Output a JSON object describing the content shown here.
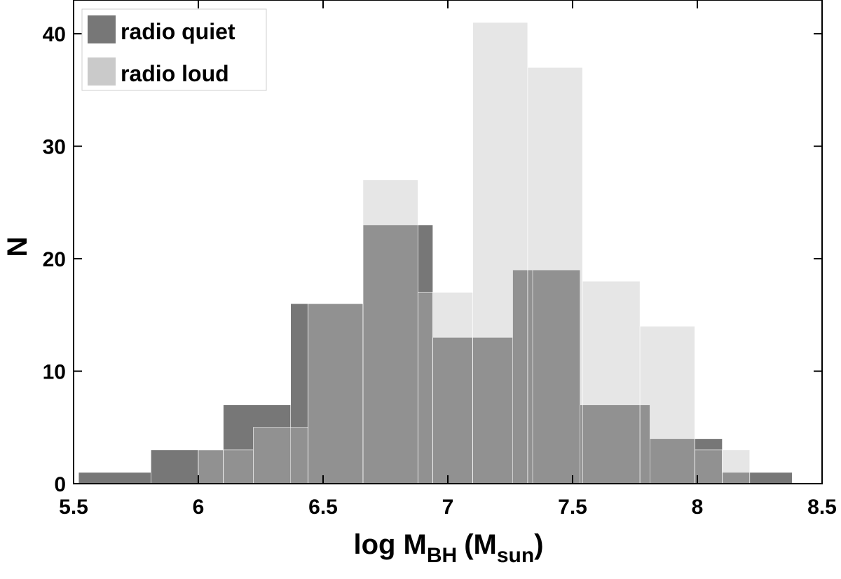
{
  "chart_data": {
    "type": "bar",
    "xlabel": {
      "main": "log M",
      "sub_bh": "BH",
      "paren_open": "(M",
      "sub_sun": "sun",
      "paren_close": ")"
    },
    "ylabel": "N",
    "xlim": [
      5.5,
      8.5
    ],
    "ylim": [
      0,
      43
    ],
    "x_ticks": [
      "5.5",
      "6",
      "6.5",
      "7",
      "7.5",
      "8",
      "8.5"
    ],
    "y_ticks": [
      "0",
      "10",
      "20",
      "30",
      "40"
    ],
    "grid": false,
    "legend_position": "top-left",
    "series": [
      {
        "name": "radio quiet",
        "color": "#555555",
        "bins": [
          {
            "x0": 5.52,
            "x1": 5.81,
            "y": 1
          },
          {
            "x0": 5.81,
            "x1": 6.0,
            "y": 3
          },
          {
            "x0": 6.0,
            "x1": 6.1,
            "y": 3
          },
          {
            "x0": 6.1,
            "x1": 6.37,
            "y": 7
          },
          {
            "x0": 6.37,
            "x1": 6.44,
            "y": 16
          },
          {
            "x0": 6.44,
            "x1": 6.66,
            "y": 16
          },
          {
            "x0": 6.66,
            "x1": 6.88,
            "y": 23
          },
          {
            "x0": 6.88,
            "x1": 6.94,
            "y": 23
          },
          {
            "x0": 6.94,
            "x1": 7.1,
            "y": 13
          },
          {
            "x0": 7.1,
            "x1": 7.26,
            "y": 13
          },
          {
            "x0": 7.26,
            "x1": 7.34,
            "y": 19
          },
          {
            "x0": 7.34,
            "x1": 7.53,
            "y": 19
          },
          {
            "x0": 7.53,
            "x1": 7.81,
            "y": 7
          },
          {
            "x0": 7.81,
            "x1": 7.99,
            "y": 4
          },
          {
            "x0": 7.99,
            "x1": 8.1,
            "y": 4
          },
          {
            "x0": 8.1,
            "x1": 8.21,
            "y": 1
          },
          {
            "x0": 8.21,
            "x1": 8.38,
            "y": 1
          }
        ]
      },
      {
        "name": "radio loud",
        "color": "#bdbdbd",
        "bins": [
          {
            "x0": 6.0,
            "x1": 6.1,
            "y": 3
          },
          {
            "x0": 6.1,
            "x1": 6.22,
            "y": 3
          },
          {
            "x0": 6.22,
            "x1": 6.44,
            "y": 5
          },
          {
            "x0": 6.44,
            "x1": 6.66,
            "y": 16
          },
          {
            "x0": 6.66,
            "x1": 6.88,
            "y": 27
          },
          {
            "x0": 6.88,
            "x1": 6.94,
            "y": 17
          },
          {
            "x0": 6.94,
            "x1": 7.1,
            "y": 17
          },
          {
            "x0": 7.1,
            "x1": 7.32,
            "y": 41
          },
          {
            "x0": 7.32,
            "x1": 7.54,
            "y": 37
          },
          {
            "x0": 7.54,
            "x1": 7.77,
            "y": 18
          },
          {
            "x0": 7.77,
            "x1": 7.99,
            "y": 14
          },
          {
            "x0": 7.99,
            "x1": 8.1,
            "y": 3
          },
          {
            "x0": 8.1,
            "x1": 8.21,
            "y": 3
          }
        ]
      }
    ]
  }
}
